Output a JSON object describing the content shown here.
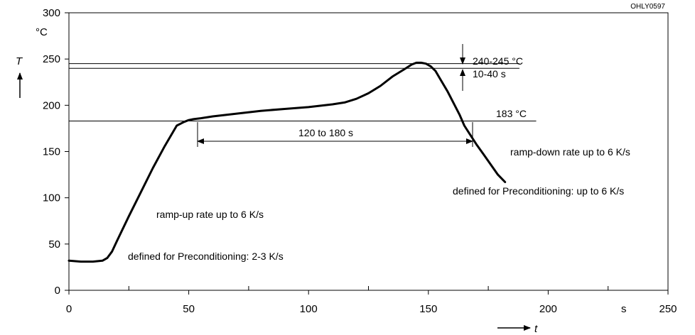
{
  "chart_data": {
    "type": "line",
    "title": "",
    "figure_id": "OHLY0597",
    "xlabel": "t",
    "ylabel": "T",
    "x_unit": "s",
    "y_unit": "°C",
    "xlim": [
      0,
      250
    ],
    "ylim": [
      0,
      300
    ],
    "x_ticks": [
      0,
      50,
      100,
      150,
      200,
      250
    ],
    "x_tick_labels": [
      "0",
      "50",
      "100",
      "150",
      "200",
      "250"
    ],
    "y_ticks": [
      0,
      50,
      100,
      150,
      200,
      250,
      300
    ],
    "y_tick_labels": [
      "0",
      "50",
      "100",
      "150",
      "200",
      "250",
      "300"
    ],
    "grid": false,
    "series": [
      {
        "name": "",
        "color": "#000000",
        "x": [
          0,
          5,
          10,
          14,
          16,
          18,
          20,
          25,
          30,
          35,
          40,
          45,
          48,
          50,
          52,
          55,
          60,
          70,
          80,
          90,
          100,
          110,
          115,
          120,
          125,
          130,
          135,
          140,
          143,
          145,
          147,
          149,
          151,
          153,
          155,
          158,
          160,
          163,
          165,
          167,
          170,
          173,
          176,
          179,
          182
        ],
        "y": [
          32,
          31,
          31,
          32,
          35,
          42,
          53,
          80,
          106,
          132,
          156,
          178,
          182,
          184,
          185,
          186,
          188,
          191,
          194,
          196,
          198,
          201,
          203,
          207,
          213,
          221,
          231,
          239,
          244,
          246,
          246,
          245,
          242,
          237,
          228,
          215,
          205,
          190,
          178,
          170,
          158,
          147,
          136,
          125,
          117
        ]
      }
    ],
    "reference_lines": [
      {
        "y": 245
      },
      {
        "y": 240
      },
      {
        "y": 183
      }
    ],
    "annotations": {
      "peak_temp": "240-245 °C",
      "peak_time": "10-40 s",
      "liquidus": "183 °C",
      "time_above": "120 to 180 s",
      "ramp_up": "ramp-up rate up to 6 K/s",
      "ramp_up_precond": "defined for Preconditioning: 2-3 K/s",
      "ramp_down": "ramp-down rate up to 6 K/s",
      "ramp_down_precond": "defined for Preconditioning: up to 6 K/s"
    }
  }
}
